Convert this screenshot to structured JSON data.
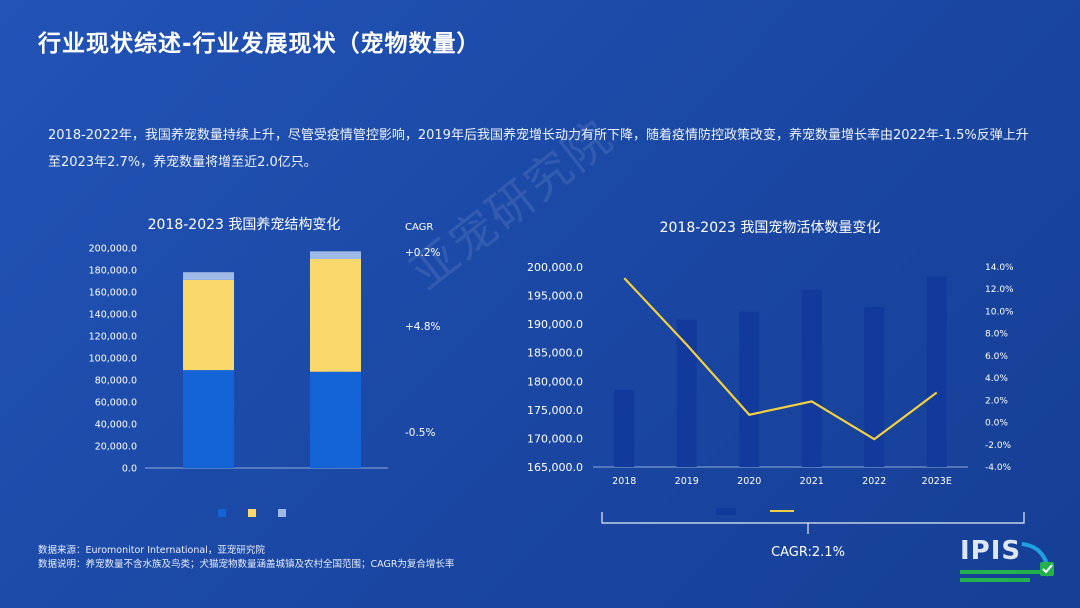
{
  "slide": {
    "title": "行业现状综述-行业发展现状（宠物数量）",
    "description": "2018-2022年，我国养宠数量持续上升，尽管受疫情管控影响，2019年后我国养宠增长动力有所下降，随着疫情防控政策改变，养宠数量增长率由2022年-1.5%反弹上升至2023年2.7%，养宠数量将增至近2.0亿只。",
    "source_line": "数据来源：Euromonitor International，亚宠研究院",
    "note_line": "数据说明：养宠数量不含水族及鸟类；犬猫宠物数量涵盖城镇及农村全国范围；CAGR为复合增长率",
    "watermark": "亚宠研究院",
    "logo_text": "IPIS"
  },
  "colors": {
    "background": "#1b4aa8",
    "bar_blue": "#1464d8",
    "bar_yellow": "#fbd86c",
    "bar_lightblue": "#9fb9e6",
    "bar_dark": "#12399c",
    "line_yellow": "#f3cf43"
  },
  "chart_data": [
    {
      "type": "bar",
      "stacked": true,
      "title": "2018-2023 我国养宠结构变化",
      "categories": [
        "",
        ""
      ],
      "series": [
        {
          "name": "",
          "color": "#1464d8",
          "values": [
            89000,
            87500
          ]
        },
        {
          "name": "",
          "color": "#fbd86c",
          "values": [
            82000,
            102500
          ]
        },
        {
          "name": "",
          "color": "#9fb9e6",
          "values": [
            7000,
            7000
          ]
        }
      ],
      "ylim": [
        0,
        200000
      ],
      "yticks": [
        "0.0",
        "20,000.0",
        "40,000.0",
        "60,000.0",
        "80,000.0",
        "100,000.0",
        "120,000.0",
        "140,000.0",
        "160,000.0",
        "180,000.0",
        "200,000.0"
      ],
      "cagr_label": "CAGR",
      "cagr_values": [
        "+0.2%",
        "+4.8%",
        "-0.5%"
      ],
      "legend_position": "bottom"
    },
    {
      "type": "bar+line",
      "title": "2018-2023 我国宠物活体数量变化",
      "categories": [
        "2018",
        "2019",
        "2020",
        "2021",
        "2022",
        "2023E"
      ],
      "bars": {
        "name": "",
        "values": [
          178500,
          190800,
          192200,
          196000,
          193000,
          198300
        ]
      },
      "line": {
        "name": "",
        "values": [
          13.0,
          7.0,
          0.7,
          1.9,
          -1.5,
          2.7
        ]
      },
      "ylim_left": [
        165000,
        200000
      ],
      "yticks_left": [
        "165,000.0",
        "170,000.0",
        "175,000.0",
        "180,000.0",
        "185,000.0",
        "190,000.0",
        "195,000.0",
        "200,000.0"
      ],
      "ylim_right": [
        -4,
        14
      ],
      "yticks_right": [
        "-4.0%",
        "-2.0%",
        "0.0%",
        "2.0%",
        "4.0%",
        "6.0%",
        "8.0%",
        "10.0%",
        "12.0%",
        "14.0%"
      ],
      "cagr_text": "CAGR:2.1%",
      "legend_position": "bottom"
    }
  ]
}
